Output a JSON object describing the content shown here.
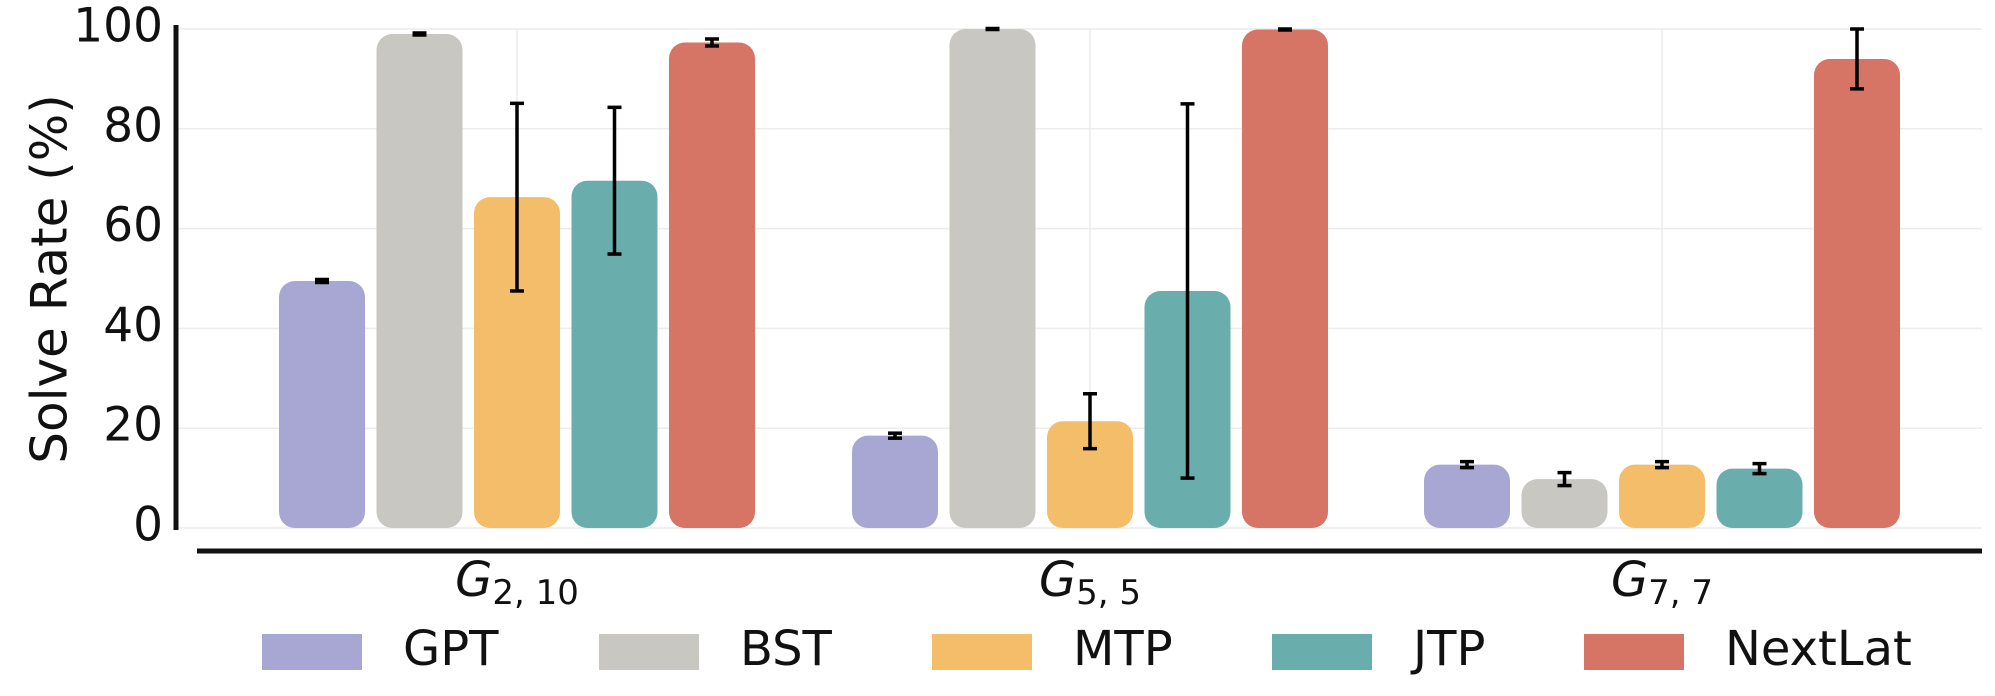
{
  "chart_data": {
    "type": "bar",
    "title": "",
    "xlabel": "",
    "ylabel": "Solve Rate (%)",
    "ylim": [
      0,
      100
    ],
    "yticks": [
      0,
      20,
      40,
      60,
      80,
      100
    ],
    "grid": true,
    "legend_position": "bottom",
    "categories": [
      {
        "base": "G",
        "sub": "2, 10"
      },
      {
        "base": "G",
        "sub": "5, 5"
      },
      {
        "base": "G",
        "sub": "7, 7"
      }
    ],
    "series": [
      {
        "name": "GPT",
        "color": "#a8a6d2",
        "values": [
          49.5,
          18.5,
          12.7
        ],
        "errors": [
          0.3,
          0.5,
          0.6
        ]
      },
      {
        "name": "BST",
        "color": "#c8c7c2",
        "values": [
          99.0,
          100.0,
          9.8
        ],
        "errors": [
          0.2,
          0.1,
          1.3
        ]
      },
      {
        "name": "MTP",
        "color": "#f4bd6a",
        "values": [
          66.3,
          21.4,
          12.7
        ],
        "errors": [
          18.8,
          5.5,
          0.6
        ]
      },
      {
        "name": "JTP",
        "color": "#69aead",
        "values": [
          69.6,
          47.5,
          11.9
        ],
        "errors": [
          14.7,
          37.5,
          1.0
        ]
      },
      {
        "name": "NextLat",
        "color": "#d67466",
        "values": [
          97.3,
          99.9,
          94.0
        ],
        "errors": [
          0.7,
          0.1,
          6.0
        ]
      }
    ]
  }
}
